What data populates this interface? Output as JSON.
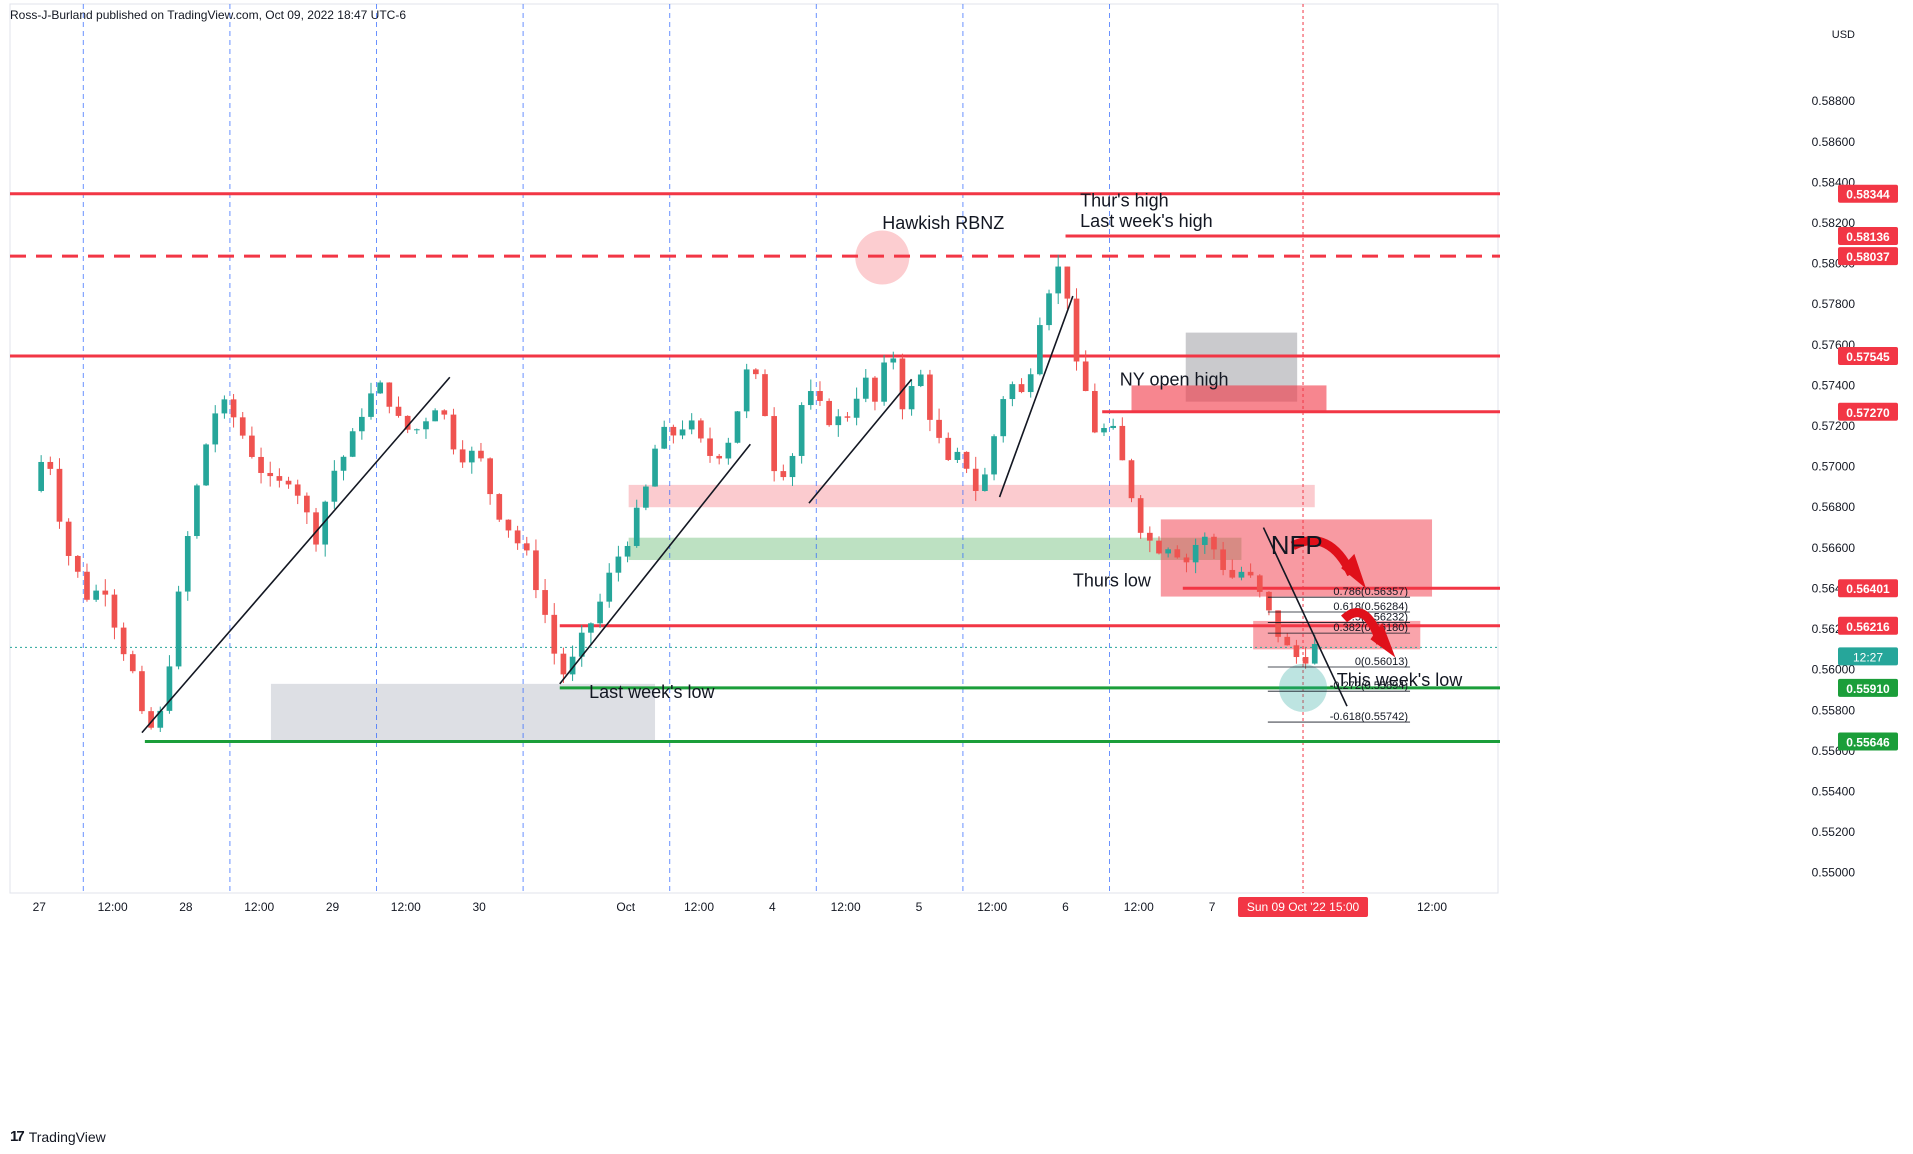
{
  "header": {
    "published": "Ross-J-Burland published on TradingView.com, Oct 09, 2022 18:47 UTC-6"
  },
  "footer": {
    "brand": "TradingView"
  },
  "colors": {
    "up": "#26a69a",
    "down": "#ef5350",
    "level": "#f23645",
    "support": "#1b9e3a",
    "axis_bg": "#ffffff"
  },
  "chart_data": {
    "type": "candlestick",
    "currency": "USD",
    "ylim": [
      0.549,
      0.5918
    ],
    "y_ticks": [
      "0.58800",
      "0.58600",
      "0.58400",
      "0.58200",
      "0.58000",
      "0.57800",
      "0.57600",
      "0.57400",
      "0.57200",
      "0.57000",
      "0.56800",
      "0.56600",
      "0.56400",
      "0.56200",
      "0.56000",
      "0.55800",
      "0.55600",
      "0.55400",
      "0.55200",
      "0.55000"
    ],
    "x_ticks": [
      {
        "label": "27",
        "t": 0.0
      },
      {
        "label": "12:00",
        "t": 0.5
      },
      {
        "label": "28",
        "t": 1.0
      },
      {
        "label": "12:00",
        "t": 1.5
      },
      {
        "label": "29",
        "t": 2.0
      },
      {
        "label": "12:00",
        "t": 2.5
      },
      {
        "label": "30",
        "t": 3.0
      },
      {
        "label": "Oct",
        "t": 4.0
      },
      {
        "label": "12:00",
        "t": 4.5
      },
      {
        "label": "4",
        "t": 5.0
      },
      {
        "label": "12:00",
        "t": 5.5
      },
      {
        "label": "5",
        "t": 6.0
      },
      {
        "label": "12:00",
        "t": 6.5
      },
      {
        "label": "6",
        "t": 7.0
      },
      {
        "label": "12:00",
        "t": 7.5
      },
      {
        "label": "7",
        "t": 8.0
      },
      {
        "label": "12:00",
        "t": 9.5
      }
    ],
    "time_cursor": {
      "label": "Sun 09 Oct '22   15:00",
      "t": 8.62
    },
    "session_lines_t": [
      0.3,
      1.3,
      2.3,
      3.3,
      4.3,
      5.3,
      6.3,
      7.3
    ],
    "price_path": [
      [
        -0.05,
        0.5688
      ],
      [
        0.05,
        0.5711
      ],
      [
        0.18,
        0.566
      ],
      [
        0.33,
        0.5636
      ],
      [
        0.45,
        0.5641
      ],
      [
        0.55,
        0.5614
      ],
      [
        0.62,
        0.5604
      ],
      [
        0.72,
        0.5568
      ],
      [
        0.82,
        0.5575
      ],
      [
        0.92,
        0.562
      ],
      [
        1.0,
        0.566
      ],
      [
        1.12,
        0.5707
      ],
      [
        1.22,
        0.5732
      ],
      [
        1.32,
        0.5725
      ],
      [
        1.48,
        0.5703
      ],
      [
        1.6,
        0.5688
      ],
      [
        1.72,
        0.5697
      ],
      [
        1.88,
        0.5664
      ],
      [
        2.0,
        0.5697
      ],
      [
        2.12,
        0.571
      ],
      [
        2.22,
        0.5732
      ],
      [
        2.35,
        0.574
      ],
      [
        2.45,
        0.5722
      ],
      [
        2.55,
        0.5716
      ],
      [
        2.72,
        0.5733
      ],
      [
        2.85,
        0.5707
      ],
      [
        3.0,
        0.5705
      ],
      [
        3.1,
        0.5682
      ],
      [
        3.22,
        0.5668
      ],
      [
        3.35,
        0.5652
      ],
      [
        3.45,
        0.5627
      ],
      [
        3.55,
        0.5597
      ],
      [
        3.62,
        0.5601
      ],
      [
        3.72,
        0.5617
      ],
      [
        3.82,
        0.5632
      ],
      [
        3.92,
        0.5652
      ],
      [
        4.02,
        0.5666
      ],
      [
        4.12,
        0.5683
      ],
      [
        4.22,
        0.5715
      ],
      [
        4.32,
        0.5716
      ],
      [
        4.42,
        0.5723
      ],
      [
        4.55,
        0.5706
      ],
      [
        4.62,
        0.5706
      ],
      [
        4.72,
        0.5716
      ],
      [
        4.82,
        0.5746
      ],
      [
        4.92,
        0.574
      ],
      [
        5.02,
        0.5698
      ],
      [
        5.12,
        0.57
      ],
      [
        5.22,
        0.5738
      ],
      [
        5.3,
        0.573
      ],
      [
        5.42,
        0.5722
      ],
      [
        5.5,
        0.5724
      ],
      [
        5.62,
        0.5744
      ],
      [
        5.72,
        0.5728
      ],
      [
        5.8,
        0.5764
      ],
      [
        5.9,
        0.5727
      ],
      [
        6.0,
        0.5748
      ],
      [
        6.1,
        0.5719
      ],
      [
        6.2,
        0.57
      ],
      [
        6.3,
        0.5706
      ],
      [
        6.4,
        0.5687
      ],
      [
        6.48,
        0.57
      ],
      [
        6.55,
        0.5733
      ],
      [
        6.65,
        0.5741
      ],
      [
        6.72,
        0.5733
      ],
      [
        6.82,
        0.5773
      ],
      [
        6.9,
        0.5792
      ],
      [
        6.96,
        0.5798
      ],
      [
        7.02,
        0.5784
      ],
      [
        7.08,
        0.5744
      ],
      [
        7.15,
        0.5735
      ],
      [
        7.22,
        0.5712
      ],
      [
        7.3,
        0.5723
      ],
      [
        7.35,
        0.5709
      ],
      [
        7.42,
        0.5695
      ],
      [
        7.5,
        0.5673
      ],
      [
        7.6,
        0.566
      ],
      [
        7.72,
        0.5663
      ],
      [
        7.82,
        0.5653
      ],
      [
        7.92,
        0.5666
      ],
      [
        8.02,
        0.5659
      ],
      [
        8.12,
        0.5645
      ],
      [
        8.22,
        0.5649
      ],
      [
        8.32,
        0.5637
      ],
      [
        8.42,
        0.5622
      ],
      [
        8.52,
        0.5609
      ],
      [
        8.6,
        0.5605
      ],
      [
        8.68,
        0.561
      ],
      [
        8.75,
        0.5613
      ]
    ],
    "levels": [
      {
        "price": 0.58344,
        "label": "0.58344",
        "style": "solid",
        "color": "#f23645",
        "t0": -0.2
      },
      {
        "price": 0.58136,
        "label": "0.58136",
        "style": "solid",
        "color": "#f23645",
        "t0": 7.0
      },
      {
        "price": 0.58037,
        "label": "0.58037",
        "style": "dashed",
        "color": "#f23645",
        "t0": -0.2
      },
      {
        "price": 0.57545,
        "label": "0.57545",
        "style": "solid",
        "color": "#f23645",
        "t0": -0.2
      },
      {
        "price": 0.5727,
        "label": "0.57270",
        "style": "solid",
        "color": "#f23645",
        "t0": 7.25
      },
      {
        "price": 0.56401,
        "label": "0.56401",
        "style": "solid",
        "color": "#f23645",
        "t0": 7.8
      },
      {
        "price": 0.56216,
        "label": "0.56216",
        "style": "solid",
        "color": "#f23645",
        "t0": 3.55
      },
      {
        "price": 0.5591,
        "label": "0.55910",
        "style": "solid",
        "color": "#1b9e3a",
        "t0": 3.55
      },
      {
        "price": 0.55646,
        "label": "0.55646",
        "style": "solid",
        "color": "#1b9e3a",
        "t0": 0.72
      }
    ],
    "current_price_label": "12:27",
    "current_price": 0.5611,
    "fib_levels": [
      {
        "price": 0.56357,
        "label": "0.786(0.56357)"
      },
      {
        "price": 0.56284,
        "label": "0.618(0.56284)"
      },
      {
        "price": 0.56232,
        "label": "0.5(0.56232)"
      },
      {
        "price": 0.5618,
        "label": "0.382(0.56180)"
      },
      {
        "price": 0.56013,
        "label": "0(0.56013)"
      },
      {
        "price": 0.55894,
        "label": "-0.272(0.55894)"
      },
      {
        "price": 0.55742,
        "label": "-0.618(0.55742)"
      }
    ],
    "zones": [
      {
        "t0": 7.82,
        "t1": 8.58,
        "p0": 0.5732,
        "p1": 0.5766,
        "color": "#9e9ea4",
        "opacity": 0.55
      },
      {
        "t0": 7.45,
        "t1": 8.78,
        "p0": 0.5727,
        "p1": 0.574,
        "color": "#f23645",
        "opacity": 0.6
      },
      {
        "t0": 4.02,
        "t1": 8.7,
        "p0": 0.568,
        "p1": 0.5691,
        "color": "#f7a0a8",
        "opacity": 0.55
      },
      {
        "t0": 4.02,
        "t1": 8.2,
        "p0": 0.5654,
        "p1": 0.5665,
        "color": "#86c98f",
        "opacity": 0.55
      },
      {
        "t0": 7.65,
        "t1": 9.5,
        "p0": 0.5636,
        "p1": 0.5674,
        "color": "#f23645",
        "opacity": 0.5
      },
      {
        "t0": 8.28,
        "t1": 9.42,
        "p0": 0.561,
        "p1": 0.5624,
        "color": "#f23645",
        "opacity": 0.45
      },
      {
        "t0": 1.58,
        "t1": 4.2,
        "p0": 0.5564,
        "p1": 0.5593,
        "color": "#b4b8c4",
        "opacity": 0.45
      }
    ],
    "trendlines": [
      [
        0.7,
        0.5569,
        2.8,
        0.5744
      ],
      [
        3.55,
        0.5593,
        4.85,
        0.5711
      ],
      [
        5.25,
        0.5682,
        5.95,
        0.5743
      ],
      [
        6.55,
        0.5685,
        7.05,
        0.5784
      ],
      [
        8.35,
        0.567,
        8.92,
        0.5582
      ]
    ],
    "annotations": [
      {
        "text": "Hawkish RBNZ",
        "t": 5.75,
        "price": 0.5817
      },
      {
        "text": "Thur's high",
        "t": 7.1,
        "price": 0.5828
      },
      {
        "text": "Last week's high",
        "t": 7.1,
        "price": 0.5818
      },
      {
        "text": "NY open high",
        "t": 7.37,
        "price": 0.574
      },
      {
        "text": "Thurs low",
        "t": 7.05,
        "price": 0.5641
      },
      {
        "text": "NFP",
        "t": 8.4,
        "price": 0.5657
      },
      {
        "text": "This week's low",
        "t": 8.85,
        "price": 0.5592
      },
      {
        "text": "Last week's low",
        "t": 3.75,
        "price": 0.5586
      }
    ]
  }
}
